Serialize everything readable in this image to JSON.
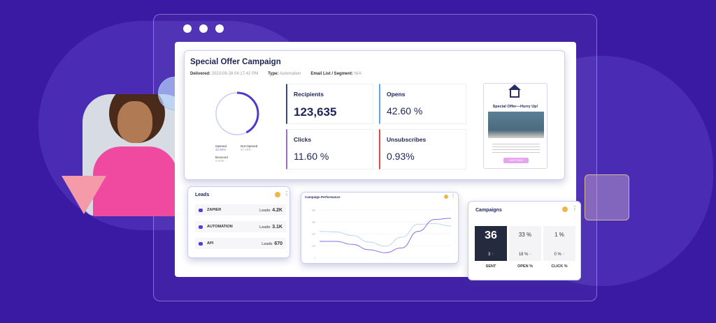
{
  "campaign": {
    "title": "Special Offer Campaign",
    "delivered_label": "Delivered:",
    "delivered": "2023-09-28 04:17:42 PM",
    "type_label": "Type:",
    "type": "Automation",
    "list_label": "Email List / Segment:",
    "list": "N/A",
    "donut": {
      "opened_pct": 42.6,
      "legend": [
        {
          "label": "Opened",
          "value": "42.60%"
        },
        {
          "label": "Not Opened",
          "value": "57.40%"
        },
        {
          "label": "Bounced",
          "value": "0.00%"
        }
      ]
    },
    "stats": [
      {
        "label": "Recipients",
        "value": "123,635",
        "color": "#3a4a7a"
      },
      {
        "label": "Opens",
        "value": "42.60 %",
        "color": "#5aa6e8"
      },
      {
        "label": "Clicks",
        "value": "11.60 %",
        "color": "#9a6ae0"
      },
      {
        "label": "Unsubscribes",
        "value": "0.93%",
        "color": "#e24a4a"
      }
    ],
    "email_preview": {
      "headline": "Special Offer—Hurry Up!",
      "button": "SHOP NOW"
    }
  },
  "leads": {
    "title": "Leads",
    "rows": [
      {
        "name": "ZAPIER",
        "label": "Leads:",
        "value": "4.2K"
      },
      {
        "name": "AUTOMATION",
        "label": "Leads:",
        "value": "3.1K"
      },
      {
        "name": "API",
        "label": "Leads:",
        "value": "670"
      }
    ]
  },
  "performance": {
    "title": "Campaign Performance"
  },
  "chart_data": {
    "type": "line",
    "yticks": [
      "400",
      "300",
      "200",
      "100",
      "0"
    ],
    "ylim": [
      0,
      400
    ],
    "grid": true,
    "series": [
      {
        "color": "#b9d8f5",
        "values": [
          220,
          215,
          185,
          130,
          95,
          170,
          280,
          285,
          265
        ]
      },
      {
        "color": "#8a6ee0",
        "values": [
          135,
          135,
          110,
          65,
          40,
          80,
          220,
          320,
          330
        ]
      }
    ]
  },
  "campaigns": {
    "title": "Campaigns",
    "tiles": [
      {
        "value": "36",
        "sub": "3",
        "label": "SENT"
      },
      {
        "value": "33 %",
        "sub": "18 %",
        "label": "OPEN %"
      },
      {
        "value": "1 %",
        "sub": "0 %",
        "label": "CLICK %"
      }
    ]
  },
  "colors": {
    "background": "#3a1aa3",
    "accent": "#4a3ad0"
  }
}
